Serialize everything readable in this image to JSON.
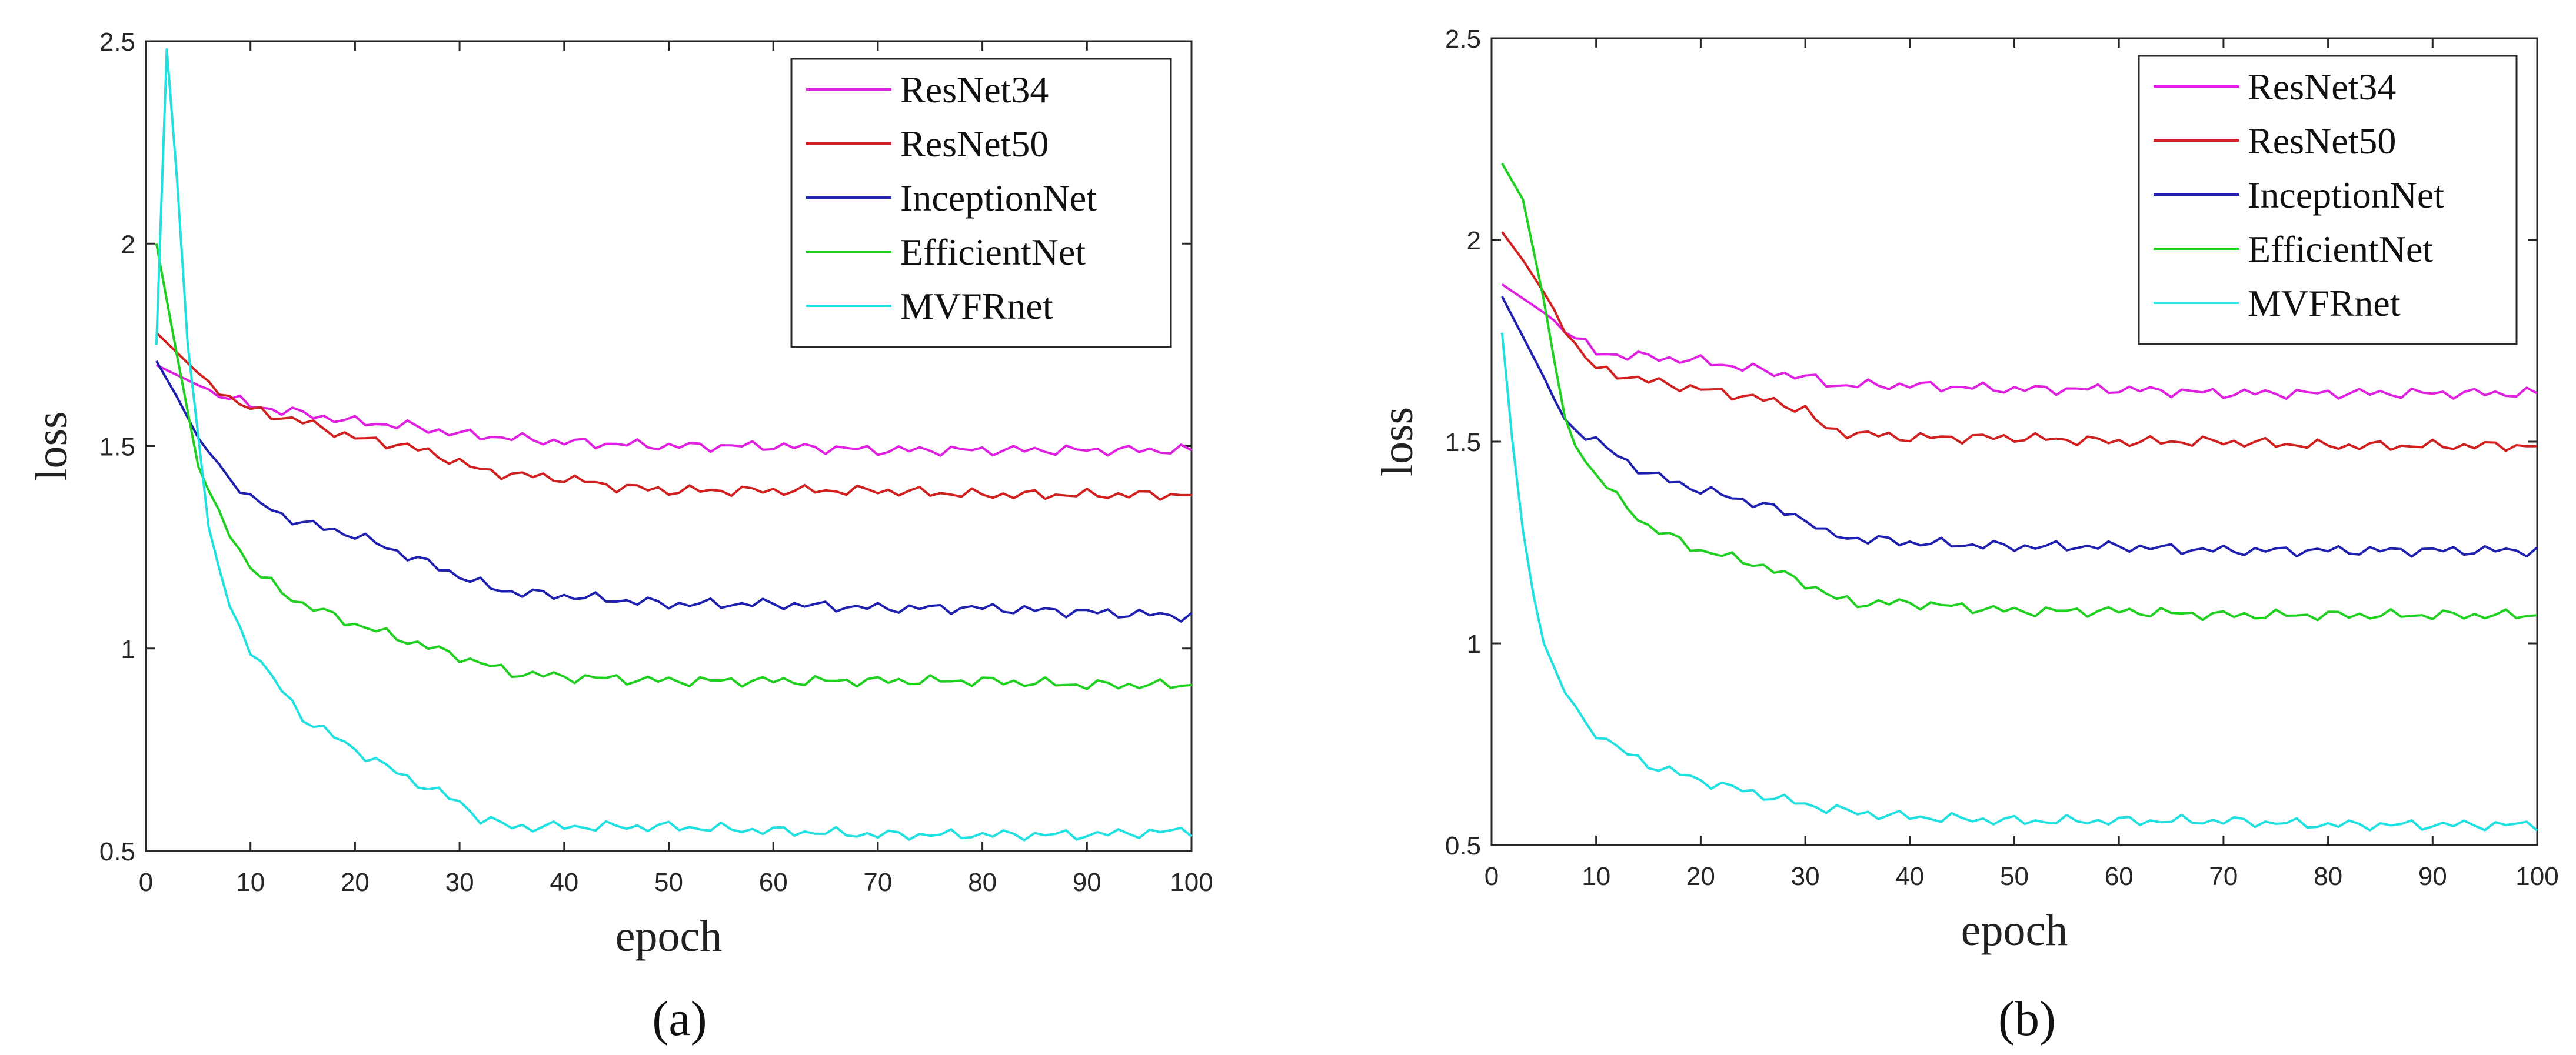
{
  "chart_data": [
    {
      "type": "line",
      "caption": "(a)",
      "xlabel": "epoch",
      "ylabel": "loss",
      "xlim": [
        0,
        100
      ],
      "ylim": [
        0.5,
        2.5
      ],
      "xticks": [
        "0",
        "10",
        "20",
        "30",
        "40",
        "50",
        "60",
        "70",
        "80",
        "90",
        "100"
      ],
      "yticks": [
        "0.5",
        "1",
        "1.5",
        "2",
        "2.5"
      ],
      "grid": false,
      "legend": "top-right",
      "series": [
        {
          "name": "ResNet34",
          "color": "#e020e0",
          "points": [
            [
              1,
              1.7
            ],
            [
              5,
              1.65
            ],
            [
              10,
              1.6
            ],
            [
              15,
              1.58
            ],
            [
              20,
              1.56
            ],
            [
              25,
              1.55
            ],
            [
              30,
              1.53
            ],
            [
              35,
              1.52
            ],
            [
              40,
              1.51
            ],
            [
              50,
              1.5
            ],
            [
              60,
              1.5
            ],
            [
              70,
              1.49
            ],
            [
              80,
              1.49
            ],
            [
              90,
              1.49
            ],
            [
              100,
              1.49
            ]
          ]
        },
        {
          "name": "ResNet50",
          "color": "#d02020",
          "points": [
            [
              1,
              1.78
            ],
            [
              3,
              1.73
            ],
            [
              5,
              1.68
            ],
            [
              8,
              1.62
            ],
            [
              10,
              1.59
            ],
            [
              15,
              1.56
            ],
            [
              20,
              1.52
            ],
            [
              25,
              1.5
            ],
            [
              30,
              1.46
            ],
            [
              32,
              1.44
            ],
            [
              35,
              1.43
            ],
            [
              40,
              1.42
            ],
            [
              45,
              1.4
            ],
            [
              50,
              1.39
            ],
            [
              60,
              1.39
            ],
            [
              70,
              1.39
            ],
            [
              80,
              1.38
            ],
            [
              90,
              1.38
            ],
            [
              100,
              1.38
            ]
          ]
        },
        {
          "name": "InceptionNet",
          "color": "#2020b0",
          "points": [
            [
              1,
              1.71
            ],
            [
              3,
              1.62
            ],
            [
              5,
              1.52
            ],
            [
              7,
              1.45
            ],
            [
              10,
              1.37
            ],
            [
              13,
              1.33
            ],
            [
              15,
              1.31
            ],
            [
              20,
              1.28
            ],
            [
              25,
              1.23
            ],
            [
              30,
              1.18
            ],
            [
              33,
              1.15
            ],
            [
              35,
              1.14
            ],
            [
              40,
              1.13
            ],
            [
              45,
              1.12
            ],
            [
              50,
              1.11
            ],
            [
              60,
              1.11
            ],
            [
              70,
              1.1
            ],
            [
              80,
              1.1
            ],
            [
              90,
              1.09
            ],
            [
              100,
              1.08
            ]
          ]
        },
        {
          "name": "EfficientNet",
          "color": "#20d020",
          "points": [
            [
              1,
              2.0
            ],
            [
              3,
              1.72
            ],
            [
              5,
              1.45
            ],
            [
              7,
              1.33
            ],
            [
              10,
              1.2
            ],
            [
              13,
              1.14
            ],
            [
              15,
              1.11
            ],
            [
              20,
              1.06
            ],
            [
              25,
              1.02
            ],
            [
              30,
              0.98
            ],
            [
              35,
              0.94
            ],
            [
              40,
              0.93
            ],
            [
              50,
              0.92
            ],
            [
              60,
              0.92
            ],
            [
              70,
              0.92
            ],
            [
              80,
              0.92
            ],
            [
              90,
              0.91
            ],
            [
              100,
              0.91
            ]
          ]
        },
        {
          "name": "MVFRnet",
          "color": "#20e0e0",
          "points": [
            [
              1,
              1.75
            ],
            [
              2,
              2.48
            ],
            [
              3,
              2.15
            ],
            [
              4,
              1.75
            ],
            [
              6,
              1.3
            ],
            [
              8,
              1.1
            ],
            [
              10,
              1.0
            ],
            [
              12,
              0.93
            ],
            [
              15,
              0.83
            ],
            [
              20,
              0.75
            ],
            [
              25,
              0.68
            ],
            [
              30,
              0.62
            ],
            [
              32,
              0.58
            ],
            [
              35,
              0.56
            ],
            [
              40,
              0.56
            ],
            [
              50,
              0.56
            ],
            [
              60,
              0.55
            ],
            [
              70,
              0.54
            ],
            [
              80,
              0.54
            ],
            [
              90,
              0.54
            ],
            [
              100,
              0.55
            ]
          ]
        }
      ]
    },
    {
      "type": "line",
      "caption": "(b)",
      "xlabel": "epoch",
      "ylabel": "loss",
      "xlim": [
        0,
        100
      ],
      "ylim": [
        0.5,
        2.5
      ],
      "xticks": [
        "0",
        "10",
        "20",
        "30",
        "40",
        "50",
        "60",
        "70",
        "80",
        "90",
        "100"
      ],
      "yticks": [
        "0.5",
        "1",
        "1.5",
        "2",
        "2.5"
      ],
      "grid": false,
      "legend": "top-right",
      "series": [
        {
          "name": "ResNet34",
          "color": "#e020e0",
          "points": [
            [
              1,
              1.89
            ],
            [
              5,
              1.82
            ],
            [
              8,
              1.76
            ],
            [
              10,
              1.72
            ],
            [
              15,
              1.71
            ],
            [
              20,
              1.7
            ],
            [
              25,
              1.68
            ],
            [
              30,
              1.66
            ],
            [
              33,
              1.64
            ],
            [
              40,
              1.64
            ],
            [
              50,
              1.63
            ],
            [
              60,
              1.63
            ],
            [
              70,
              1.62
            ],
            [
              80,
              1.62
            ],
            [
              90,
              1.62
            ],
            [
              100,
              1.62
            ]
          ]
        },
        {
          "name": "ResNet50",
          "color": "#d02020",
          "points": [
            [
              1,
              2.02
            ],
            [
              3,
              1.95
            ],
            [
              5,
              1.87
            ],
            [
              8,
              1.74
            ],
            [
              10,
              1.68
            ],
            [
              15,
              1.65
            ],
            [
              20,
              1.63
            ],
            [
              25,
              1.61
            ],
            [
              30,
              1.58
            ],
            [
              32,
              1.53
            ],
            [
              35,
              1.52
            ],
            [
              40,
              1.51
            ],
            [
              50,
              1.51
            ],
            [
              60,
              1.5
            ],
            [
              70,
              1.5
            ],
            [
              80,
              1.49
            ],
            [
              90,
              1.49
            ],
            [
              100,
              1.49
            ]
          ]
        },
        {
          "name": "InceptionNet",
          "color": "#2020b0",
          "points": [
            [
              1,
              1.86
            ],
            [
              3,
              1.76
            ],
            [
              5,
              1.66
            ],
            [
              7,
              1.55
            ],
            [
              10,
              1.5
            ],
            [
              13,
              1.45
            ],
            [
              15,
              1.42
            ],
            [
              20,
              1.38
            ],
            [
              25,
              1.35
            ],
            [
              30,
              1.31
            ],
            [
              32,
              1.27
            ],
            [
              35,
              1.26
            ],
            [
              40,
              1.25
            ],
            [
              50,
              1.24
            ],
            [
              60,
              1.24
            ],
            [
              70,
              1.23
            ],
            [
              80,
              1.23
            ],
            [
              90,
              1.23
            ],
            [
              100,
              1.23
            ]
          ]
        },
        {
          "name": "EfficientNet",
          "color": "#20d020",
          "points": [
            [
              1,
              2.19
            ],
            [
              3,
              2.1
            ],
            [
              5,
              1.85
            ],
            [
              7,
              1.55
            ],
            [
              9,
              1.45
            ],
            [
              12,
              1.36
            ],
            [
              15,
              1.29
            ],
            [
              20,
              1.23
            ],
            [
              25,
              1.2
            ],
            [
              30,
              1.15
            ],
            [
              33,
              1.11
            ],
            [
              35,
              1.1
            ],
            [
              40,
              1.1
            ],
            [
              50,
              1.08
            ],
            [
              60,
              1.08
            ],
            [
              70,
              1.07
            ],
            [
              80,
              1.07
            ],
            [
              90,
              1.07
            ],
            [
              100,
              1.07
            ]
          ]
        },
        {
          "name": "MVFRnet",
          "color": "#20e0e0",
          "points": [
            [
              1,
              1.77
            ],
            [
              2,
              1.5
            ],
            [
              3,
              1.28
            ],
            [
              4,
              1.12
            ],
            [
              5,
              1.0
            ],
            [
              7,
              0.88
            ],
            [
              9,
              0.8
            ],
            [
              12,
              0.74
            ],
            [
              15,
              0.7
            ],
            [
              20,
              0.66
            ],
            [
              25,
              0.63
            ],
            [
              30,
              0.6
            ],
            [
              35,
              0.58
            ],
            [
              40,
              0.57
            ],
            [
              50,
              0.56
            ],
            [
              60,
              0.56
            ],
            [
              70,
              0.56
            ],
            [
              80,
              0.55
            ],
            [
              90,
              0.55
            ],
            [
              100,
              0.55
            ]
          ]
        }
      ]
    }
  ]
}
